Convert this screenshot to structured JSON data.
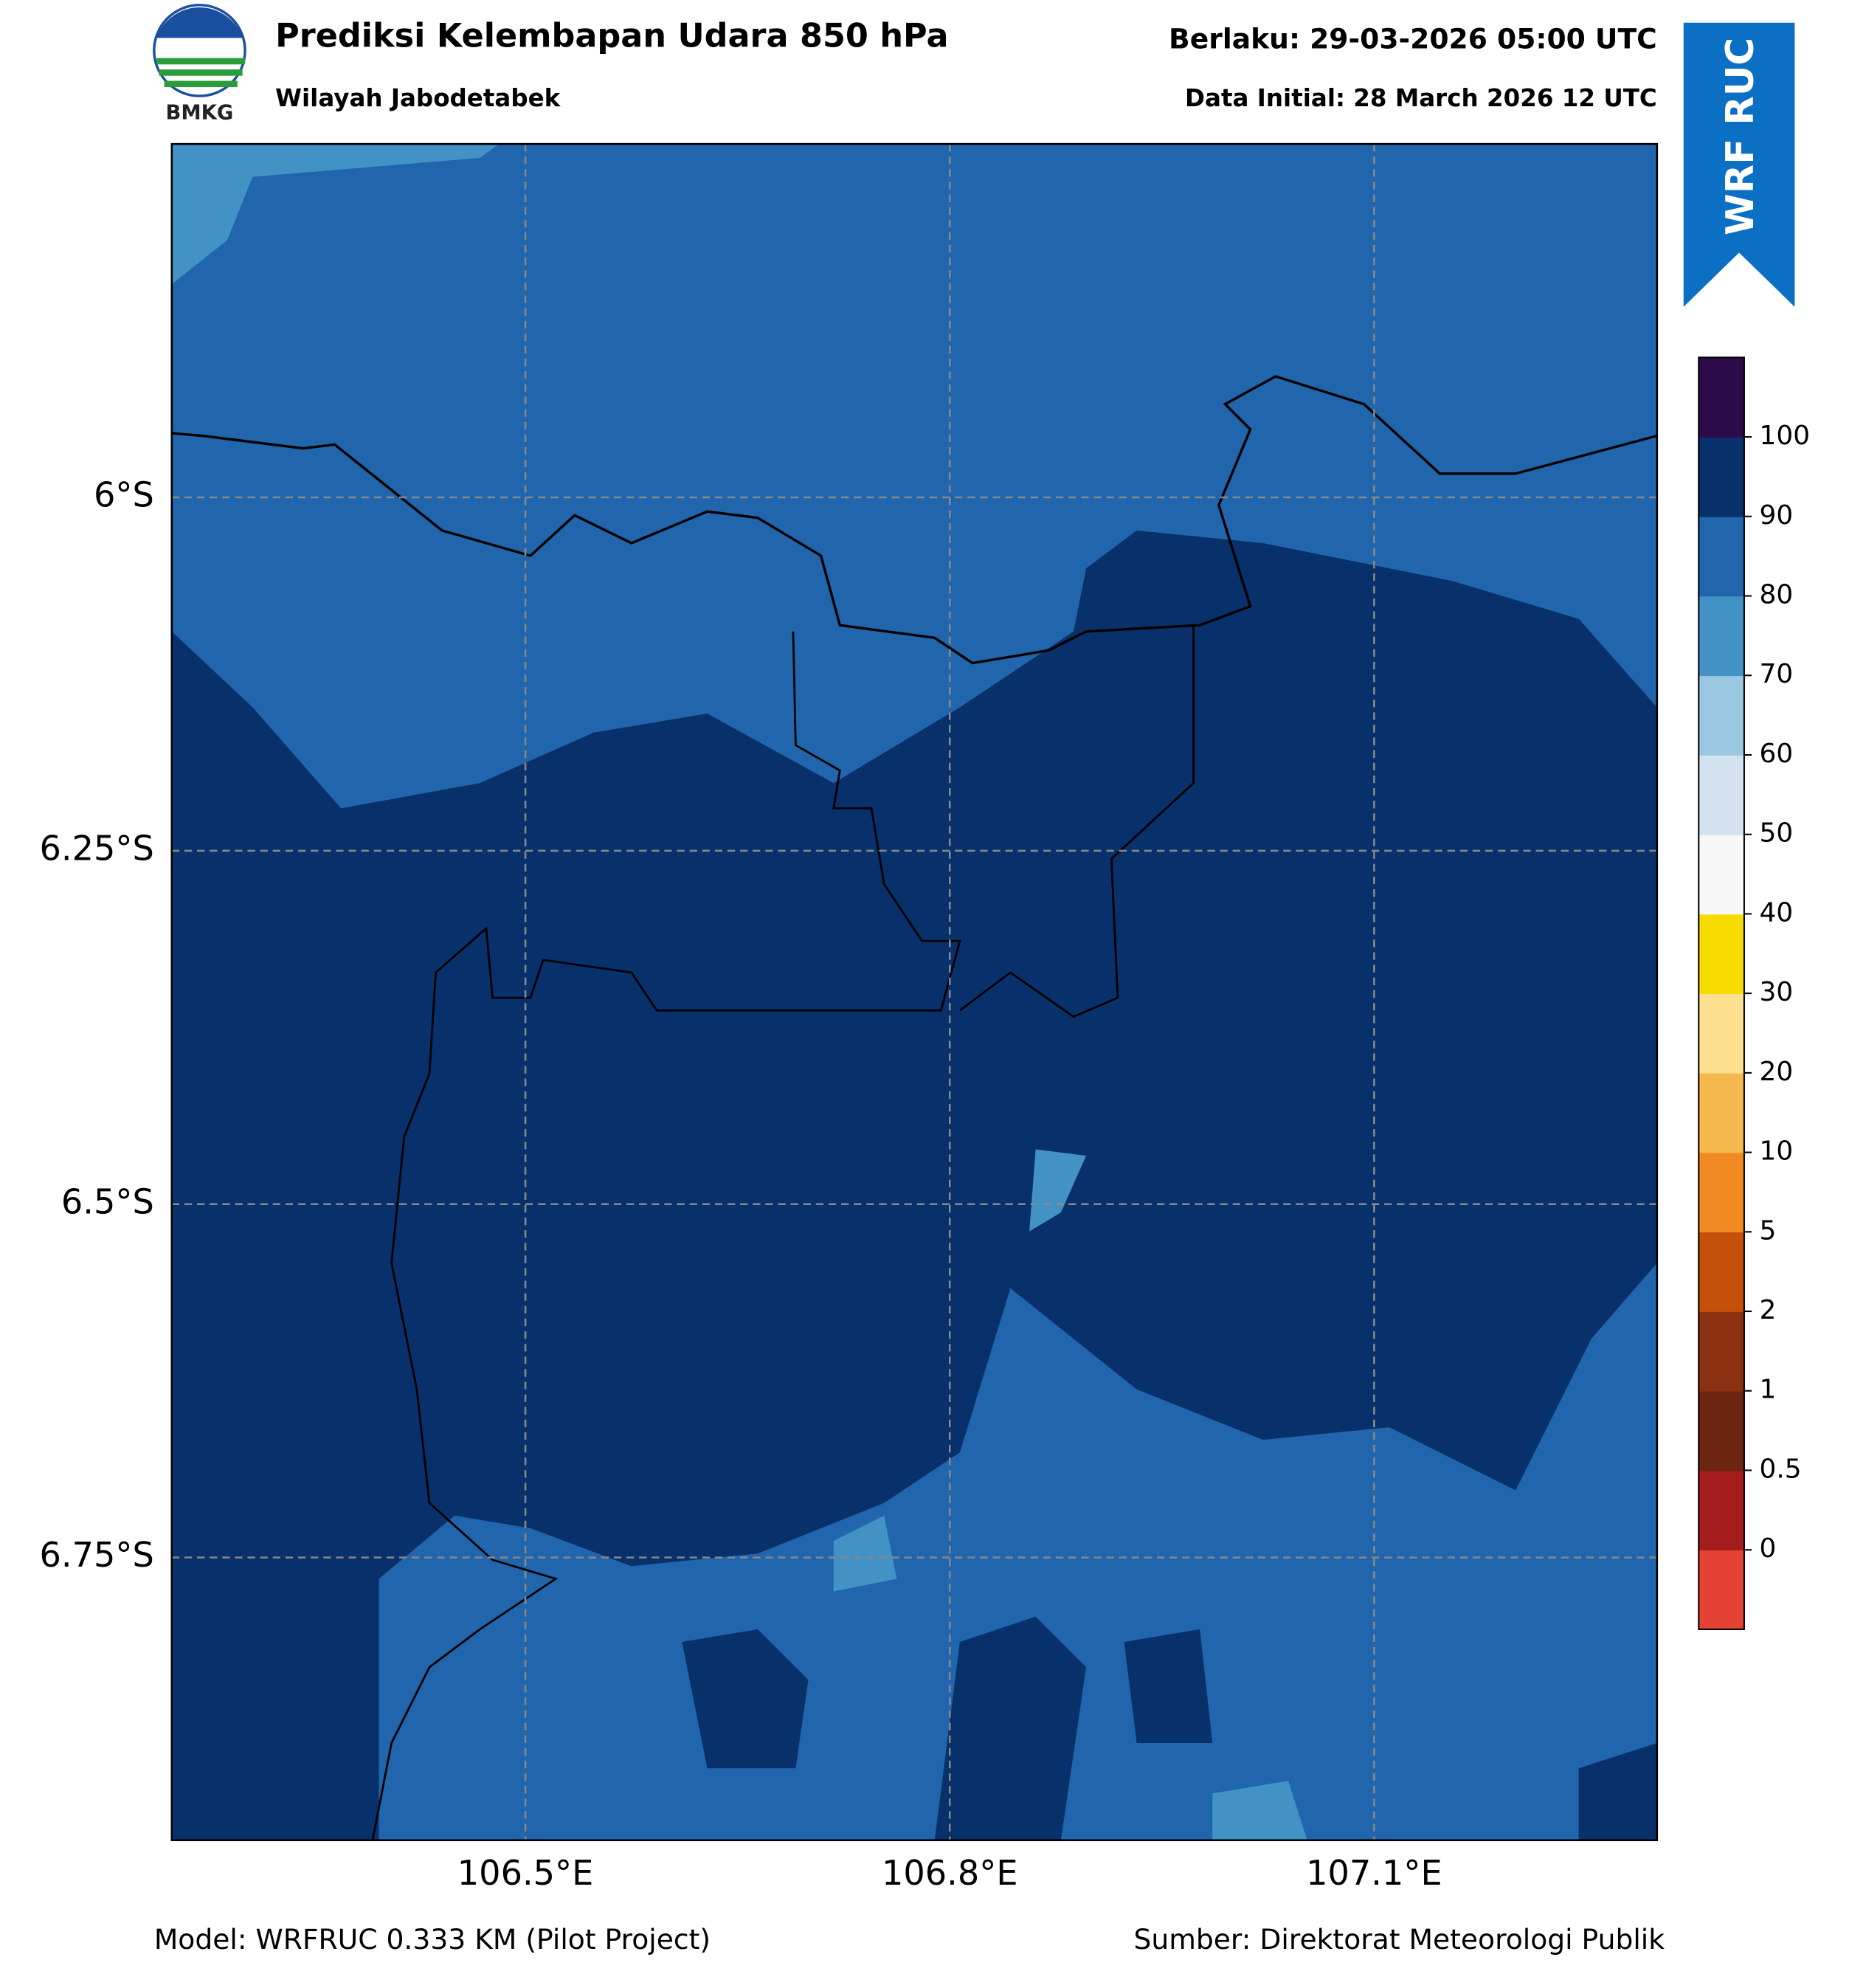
{
  "header": {
    "logo_text": "BMKG",
    "title": "Prediksi Kelembapan Udara 850 hPa",
    "subtitle": "Wilayah Jabodetabek",
    "valid_time": "Berlaku: 29-03-2026 05:00 UTC",
    "initial_time": "Data Initial: 28 March 2026 12 UTC",
    "badge": "WRF RUC"
  },
  "map": {
    "xlim": [
      106.25,
      107.3
    ],
    "ylim": [
      -6.95,
      -5.75
    ],
    "xticks": [
      {
        "value": 106.5,
        "label": "106.5°E"
      },
      {
        "value": 106.8,
        "label": "106.8°E"
      },
      {
        "value": 107.1,
        "label": "107.1°E"
      }
    ],
    "yticks": [
      {
        "value": -6,
        "label": "6°S"
      },
      {
        "value": -6.25,
        "label": "6.25°S"
      },
      {
        "value": -6.5,
        "label": "6.5°S"
      },
      {
        "value": -6.75,
        "label": "6.75°S"
      }
    ],
    "grid": true
  },
  "legend": {
    "ticks": [
      0,
      0.5,
      1,
      2,
      5,
      10,
      20,
      30,
      40,
      50,
      60,
      70,
      80,
      90,
      100
    ],
    "colors": [
      "#e34234",
      "#a51c1c",
      "#6b2510",
      "#8b3010",
      "#c4500a",
      "#f08a20",
      "#f6b74c",
      "#fde08f",
      "#f7dc00",
      "#f7f7f7",
      "#d2e3ef",
      "#9ac8e0",
      "#4292c6",
      "#2166ac",
      "#08306b",
      "#2d0a4a"
    ]
  },
  "footer": {
    "model": "Model: WRFRUC 0.333 KM (Pilot Project)",
    "source": "Sumber: Direktorat Meteorologi Publik"
  }
}
